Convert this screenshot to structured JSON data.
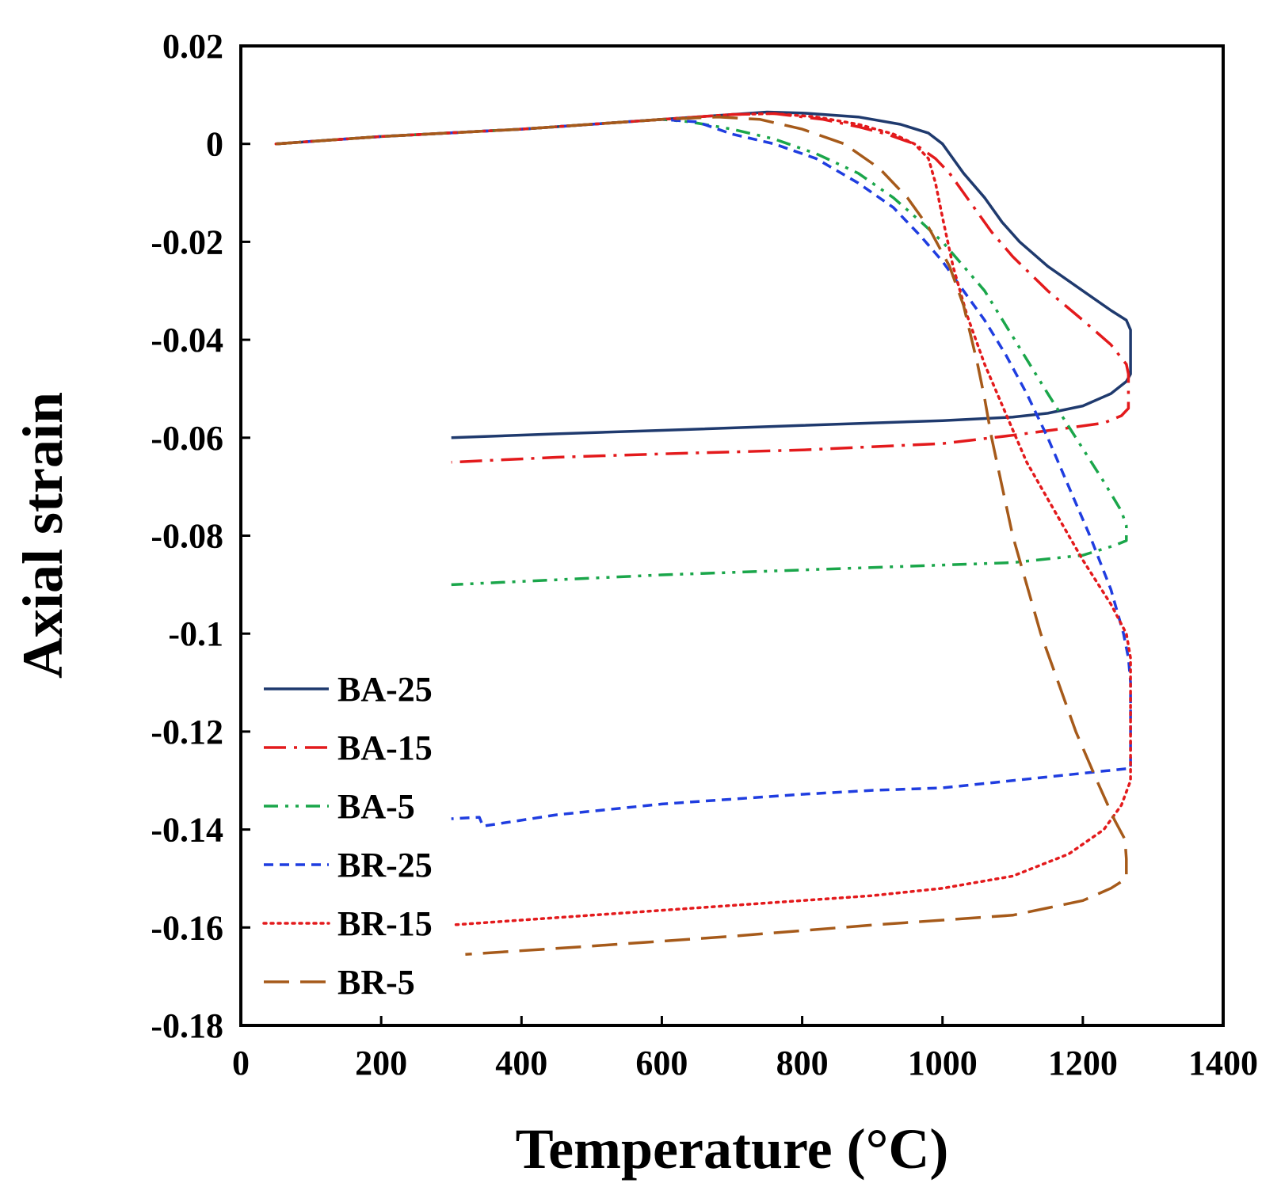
{
  "chart_data": {
    "type": "line",
    "title": "",
    "xlabel": "Temperature (°C)",
    "ylabel": "Axial strain",
    "xlim": [
      0,
      1400
    ],
    "ylim": [
      -0.18,
      0.02
    ],
    "xticks": [
      0,
      200,
      400,
      600,
      800,
      1000,
      1200,
      1400
    ],
    "yticks": [
      0.02,
      0,
      -0.02,
      -0.04,
      -0.06,
      -0.08,
      -0.1,
      -0.12,
      -0.14,
      -0.16,
      -0.18
    ],
    "xtick_labels": [
      "0",
      "200",
      "400",
      "600",
      "800",
      "1000",
      "1200",
      "1400"
    ],
    "ytick_labels": [
      "0.02",
      "0",
      "-0.02",
      "-0.04",
      "-0.06",
      "-0.08",
      "-0.1",
      "-0.12",
      "-0.14",
      "-0.16",
      "-0.18"
    ],
    "grid": false,
    "legend_position": "bottom-left",
    "series": [
      {
        "name": "BA-25",
        "color": "#1f3a6e",
        "dash": "solid",
        "points": [
          [
            50,
            0
          ],
          [
            200,
            0.0015
          ],
          [
            400,
            0.003
          ],
          [
            600,
            0.005
          ],
          [
            700,
            0.006
          ],
          [
            750,
            0.0065
          ],
          [
            800,
            0.0063
          ],
          [
            880,
            0.0055
          ],
          [
            940,
            0.004
          ],
          [
            980,
            0.0022
          ],
          [
            1000,
            0
          ],
          [
            1010,
            -0.002
          ],
          [
            1030,
            -0.006
          ],
          [
            1060,
            -0.011
          ],
          [
            1085,
            -0.016
          ],
          [
            1110,
            -0.02
          ],
          [
            1150,
            -0.025
          ],
          [
            1200,
            -0.03
          ],
          [
            1240,
            -0.034
          ],
          [
            1262,
            -0.036
          ],
          [
            1268,
            -0.038
          ],
          [
            1268,
            -0.047
          ],
          [
            1262,
            -0.0485
          ],
          [
            1240,
            -0.051
          ],
          [
            1200,
            -0.0535
          ],
          [
            1150,
            -0.055
          ],
          [
            1100,
            -0.0558
          ],
          [
            1000,
            -0.0565
          ],
          [
            800,
            -0.0575
          ],
          [
            600,
            -0.0585
          ],
          [
            450,
            -0.0592
          ],
          [
            300,
            -0.06
          ]
        ]
      },
      {
        "name": "BA-15",
        "color": "#e31a1c",
        "dash": "dashdot",
        "points": [
          [
            50,
            0
          ],
          [
            200,
            0.0015
          ],
          [
            400,
            0.003
          ],
          [
            600,
            0.005
          ],
          [
            700,
            0.006
          ],
          [
            760,
            0.0062
          ],
          [
            830,
            0.005
          ],
          [
            880,
            0.0035
          ],
          [
            920,
            0.002
          ],
          [
            960,
            0
          ],
          [
            990,
            -0.003
          ],
          [
            1010,
            -0.006
          ],
          [
            1030,
            -0.01
          ],
          [
            1050,
            -0.014
          ],
          [
            1070,
            -0.018
          ],
          [
            1100,
            -0.023
          ],
          [
            1150,
            -0.03
          ],
          [
            1200,
            -0.036
          ],
          [
            1240,
            -0.041
          ],
          [
            1262,
            -0.045
          ],
          [
            1265,
            -0.047
          ],
          [
            1265,
            -0.054
          ],
          [
            1255,
            -0.0555
          ],
          [
            1230,
            -0.057
          ],
          [
            1180,
            -0.058
          ],
          [
            1100,
            -0.0595
          ],
          [
            1000,
            -0.0612
          ],
          [
            800,
            -0.0625
          ],
          [
            600,
            -0.0633
          ],
          [
            450,
            -0.064
          ],
          [
            300,
            -0.065
          ]
        ]
      },
      {
        "name": "BA-5",
        "color": "#1aa64a",
        "dash": "dashdotdot",
        "points": [
          [
            50,
            0
          ],
          [
            200,
            0.0015
          ],
          [
            400,
            0.003
          ],
          [
            600,
            0.005
          ],
          [
            640,
            0.0045
          ],
          [
            700,
            0.003
          ],
          [
            760,
            0.001
          ],
          [
            820,
            -0.002
          ],
          [
            880,
            -0.006
          ],
          [
            930,
            -0.011
          ],
          [
            970,
            -0.016
          ],
          [
            1000,
            -0.02
          ],
          [
            1030,
            -0.025
          ],
          [
            1060,
            -0.03
          ],
          [
            1090,
            -0.037
          ],
          [
            1120,
            -0.044
          ],
          [
            1150,
            -0.051
          ],
          [
            1190,
            -0.06
          ],
          [
            1230,
            -0.069
          ],
          [
            1255,
            -0.075
          ],
          [
            1262,
            -0.078
          ],
          [
            1262,
            -0.081
          ],
          [
            1245,
            -0.082
          ],
          [
            1200,
            -0.084
          ],
          [
            1100,
            -0.0855
          ],
          [
            1000,
            -0.086
          ],
          [
            800,
            -0.087
          ],
          [
            600,
            -0.088
          ],
          [
            450,
            -0.089
          ],
          [
            300,
            -0.09
          ]
        ]
      },
      {
        "name": "BR-25",
        "color": "#1f3de0",
        "dash": "shortdash",
        "points": [
          [
            50,
            0
          ],
          [
            200,
            0.0015
          ],
          [
            400,
            0.003
          ],
          [
            600,
            0.005
          ],
          [
            650,
            0.0045
          ],
          [
            700,
            0.002
          ],
          [
            760,
            0
          ],
          [
            820,
            -0.003
          ],
          [
            880,
            -0.008
          ],
          [
            930,
            -0.013
          ],
          [
            970,
            -0.019
          ],
          [
            1000,
            -0.024
          ],
          [
            1030,
            -0.03
          ],
          [
            1060,
            -0.036
          ],
          [
            1090,
            -0.043
          ],
          [
            1120,
            -0.051
          ],
          [
            1150,
            -0.06
          ],
          [
            1180,
            -0.07
          ],
          [
            1210,
            -0.08
          ],
          [
            1240,
            -0.091
          ],
          [
            1258,
            -0.1
          ],
          [
            1265,
            -0.105
          ],
          [
            1268,
            -0.11
          ],
          [
            1268,
            -0.1275
          ],
          [
            1200,
            -0.1285
          ],
          [
            1100,
            -0.13
          ],
          [
            1000,
            -0.1315
          ],
          [
            900,
            -0.132
          ],
          [
            800,
            -0.1328
          ],
          [
            600,
            -0.1348
          ],
          [
            450,
            -0.137
          ],
          [
            345,
            -0.1393
          ],
          [
            340,
            -0.1375
          ],
          [
            300,
            -0.1378
          ]
        ]
      },
      {
        "name": "BR-15",
        "color": "#e31a1c",
        "dash": "dotted",
        "points": [
          [
            50,
            0
          ],
          [
            200,
            0.0015
          ],
          [
            400,
            0.003
          ],
          [
            600,
            0.005
          ],
          [
            700,
            0.006
          ],
          [
            760,
            0.0062
          ],
          [
            820,
            0.0055
          ],
          [
            880,
            0.004
          ],
          [
            930,
            0.002
          ],
          [
            960,
            0
          ],
          [
            980,
            -0.003
          ],
          [
            990,
            -0.008
          ],
          [
            1000,
            -0.015
          ],
          [
            1015,
            -0.025
          ],
          [
            1035,
            -0.035
          ],
          [
            1060,
            -0.045
          ],
          [
            1090,
            -0.055
          ],
          [
            1120,
            -0.065
          ],
          [
            1160,
            -0.075
          ],
          [
            1200,
            -0.085
          ],
          [
            1240,
            -0.094
          ],
          [
            1262,
            -0.1
          ],
          [
            1268,
            -0.105
          ],
          [
            1268,
            -0.13
          ],
          [
            1255,
            -0.135
          ],
          [
            1230,
            -0.14
          ],
          [
            1180,
            -0.145
          ],
          [
            1100,
            -0.1495
          ],
          [
            1000,
            -0.152
          ],
          [
            900,
            -0.1535
          ],
          [
            700,
            -0.1555
          ],
          [
            500,
            -0.1575
          ],
          [
            300,
            -0.1595
          ]
        ]
      },
      {
        "name": "BR-5",
        "color": "#a65a1a",
        "dash": "longdash",
        "points": [
          [
            50,
            0
          ],
          [
            200,
            0.0015
          ],
          [
            400,
            0.003
          ],
          [
            600,
            0.005
          ],
          [
            680,
            0.0055
          ],
          [
            740,
            0.005
          ],
          [
            800,
            0.003
          ],
          [
            860,
            0
          ],
          [
            910,
            -0.005
          ],
          [
            950,
            -0.011
          ],
          [
            980,
            -0.017
          ],
          [
            1010,
            -0.025
          ],
          [
            1030,
            -0.033
          ],
          [
            1050,
            -0.045
          ],
          [
            1060,
            -0.052
          ],
          [
            1070,
            -0.06
          ],
          [
            1085,
            -0.07
          ],
          [
            1100,
            -0.08
          ],
          [
            1120,
            -0.09
          ],
          [
            1140,
            -0.1
          ],
          [
            1165,
            -0.11
          ],
          [
            1190,
            -0.12
          ],
          [
            1220,
            -0.13
          ],
          [
            1245,
            -0.138
          ],
          [
            1260,
            -0.142
          ],
          [
            1262,
            -0.146
          ],
          [
            1262,
            -0.15
          ],
          [
            1240,
            -0.152
          ],
          [
            1200,
            -0.1545
          ],
          [
            1150,
            -0.156
          ],
          [
            1100,
            -0.1575
          ],
          [
            1000,
            -0.1585
          ],
          [
            900,
            -0.1595
          ],
          [
            700,
            -0.1618
          ],
          [
            500,
            -0.1638
          ],
          [
            320,
            -0.1655
          ]
        ]
      }
    ]
  }
}
